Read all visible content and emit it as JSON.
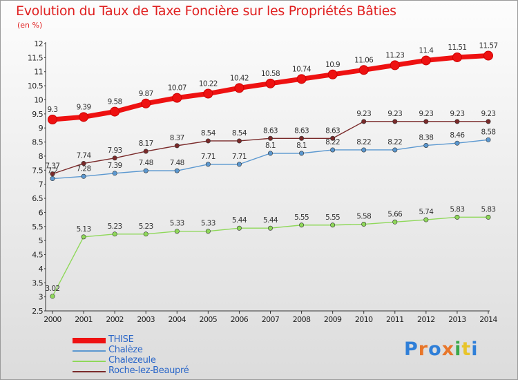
{
  "title": "Evolution du Taux de Taxe Foncière sur les Propriétés Bâties",
  "subtitle": "(en %)",
  "logo": {
    "text": "Proxiti",
    "colors": [
      "#2f7fd8",
      "#e8762a",
      "#2f7fd8",
      "#e8762a",
      "#3aa84a",
      "#e8c42a",
      "#2f7fd8"
    ]
  },
  "chart_data": {
    "type": "line",
    "title": "Evolution du Taux de Taxe Foncière sur les Propriétés Bâties",
    "ylabel": "(en %)",
    "xlabel": "",
    "x": [
      2000,
      2001,
      2002,
      2003,
      2004,
      2005,
      2006,
      2007,
      2008,
      2009,
      2010,
      2011,
      2012,
      2013,
      2014
    ],
    "ylim": [
      2.5,
      12
    ],
    "ytick_step": 0.5,
    "grid": false,
    "legend_position": "bottom-left",
    "series": [
      {
        "name": "THISE",
        "color": "#ee1111",
        "bold": true,
        "values": [
          9.3,
          9.39,
          9.58,
          9.87,
          10.07,
          10.22,
          10.42,
          10.58,
          10.74,
          10.9,
          11.06,
          11.23,
          11.4,
          11.51,
          11.57
        ],
        "labels": [
          "9.3",
          "9.39",
          "9.58",
          "9.87",
          "10.07",
          "10.22",
          "10.42",
          "10.58",
          "10.74",
          "10.9",
          "11.06",
          "11.23",
          "11.4",
          "11.51",
          "11.57"
        ]
      },
      {
        "name": "Chalèze",
        "color": "#5b98d0",
        "bold": false,
        "values": [
          7.2,
          7.28,
          7.39,
          7.48,
          7.48,
          7.71,
          7.71,
          8.1,
          8.1,
          8.22,
          8.22,
          8.22,
          8.38,
          8.46,
          8.58
        ],
        "labels": [
          "7.2",
          "7.28",
          "7.39",
          "7.48",
          "7.48",
          "7.71",
          "7.71",
          "8.1",
          "8.1",
          "8.22",
          "8.22",
          "8.22",
          "8.38",
          "8.46",
          "8.58"
        ]
      },
      {
        "name": "Chalezeule",
        "color": "#8fd85a",
        "bold": false,
        "values": [
          3.02,
          5.13,
          5.23,
          5.23,
          5.33,
          5.33,
          5.44,
          5.44,
          5.55,
          5.55,
          5.58,
          5.66,
          5.74,
          5.83,
          5.83
        ],
        "labels": [
          "3.02",
          "5.13",
          "5.23",
          "5.23",
          "5.33",
          "5.33",
          "5.44",
          "5.44",
          "5.55",
          "5.55",
          "5.58",
          "5.66",
          "5.74",
          "5.83",
          "5.83"
        ]
      },
      {
        "name": "Roche-lez-Beaupré",
        "color": "#7a2a2a",
        "bold": false,
        "values": [
          7.37,
          7.74,
          7.93,
          8.17,
          8.37,
          8.54,
          8.54,
          8.63,
          8.63,
          8.63,
          9.23,
          9.23,
          9.23,
          9.23,
          9.23
        ],
        "labels": [
          "7.37",
          "7.74",
          "7.93",
          "8.17",
          "8.37",
          "8.54",
          "8.54",
          "8.63",
          "8.63",
          "8.63",
          "9.23",
          "9.23",
          "9.23",
          "9.23",
          "9.23"
        ]
      }
    ]
  }
}
